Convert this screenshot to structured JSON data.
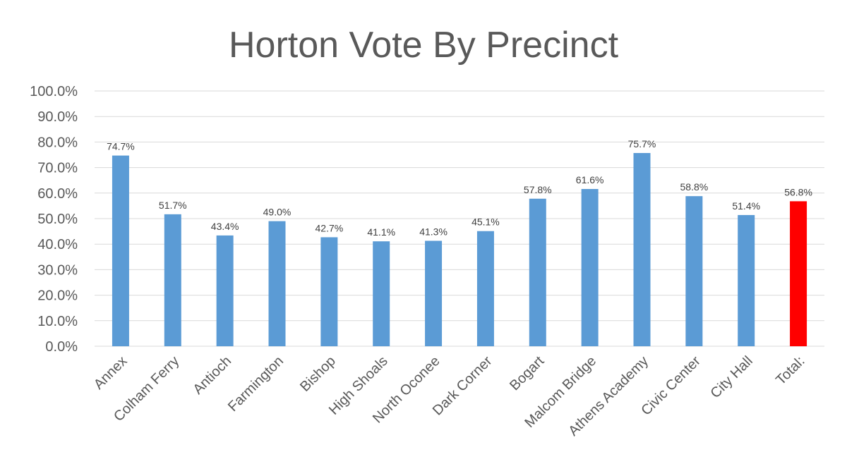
{
  "chart_data": {
    "type": "bar",
    "title": "Horton Vote By Precinct",
    "xlabel": "",
    "ylabel": "",
    "ylim": [
      0,
      100
    ],
    "yticks": [
      "0.0%",
      "10.0%",
      "20.0%",
      "30.0%",
      "40.0%",
      "50.0%",
      "60.0%",
      "70.0%",
      "80.0%",
      "90.0%",
      "100.0%"
    ],
    "categories": [
      "Annex",
      "Colham Ferry",
      "Antioch",
      "Farmington",
      "Bishop",
      "High Shoals",
      "North Oconee",
      "Dark Corner",
      "Bogart",
      "Malcom Bridge",
      "Athens Academy",
      "Civic Center",
      "City Hall",
      "Total:"
    ],
    "values": [
      74.7,
      51.7,
      43.4,
      49.0,
      42.7,
      41.1,
      41.3,
      45.1,
      57.8,
      61.6,
      75.7,
      58.8,
      51.4,
      56.8
    ],
    "value_labels": [
      "74.7%",
      "51.7%",
      "43.4%",
      "49.0%",
      "42.7%",
      "41.1%",
      "41.3%",
      "45.1%",
      "57.8%",
      "61.6%",
      "75.7%",
      "58.8%",
      "51.4%",
      "56.8%"
    ],
    "colors": {
      "bar": "#5b9bd5",
      "highlight_bar": "#ff0000",
      "highlight_category": "Total:"
    },
    "grid": true,
    "legend": "none"
  }
}
